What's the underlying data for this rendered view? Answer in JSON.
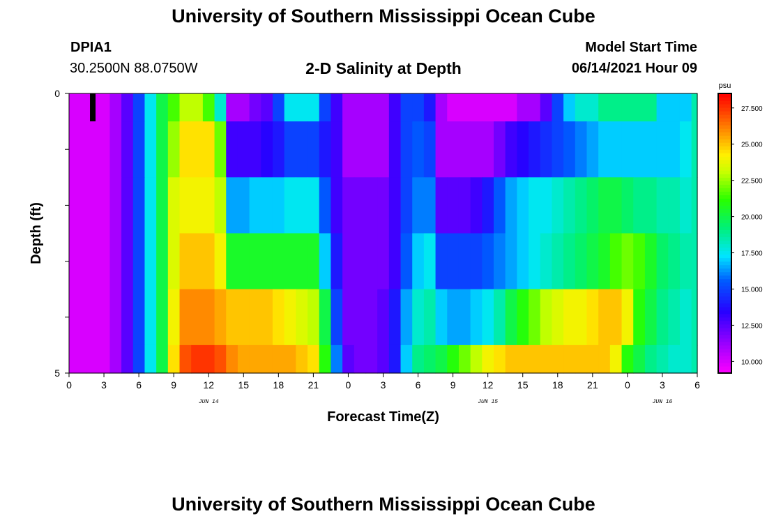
{
  "header": {
    "title": "University of Southern Mississippi Ocean Cube",
    "footer_title": "University of Southern Mississippi Ocean Cube",
    "station_id": "DPIA1",
    "station_coords": "30.2500N  88.0750W",
    "product_title": "2-D Salinity at Depth",
    "model_start_label": "Model Start Time",
    "model_start_value": "06/14/2021 Hour 09"
  },
  "chart_data": {
    "type": "heatmap",
    "title": "2-D Salinity at Depth",
    "xlabel": "Forecast Time(Z)",
    "ylabel": "Depth (ft)",
    "xlim": [
      0,
      54
    ],
    "ylim": [
      0,
      5
    ],
    "x_tick_labels": [
      "0",
      "3",
      "6",
      "9",
      "12",
      "15",
      "18",
      "21",
      "0",
      "3",
      "6",
      "9",
      "12",
      "15",
      "18",
      "21",
      "0",
      "3",
      "6"
    ],
    "y_tick_labels": [
      "0",
      "5"
    ],
    "day_labels": [
      {
        "text": "JUN 14",
        "hour": 12
      },
      {
        "text": "JUN 15",
        "hour": 36
      },
      {
        "text": "JUN 16",
        "hour": 51
      }
    ],
    "colorbar": {
      "unit": "psu",
      "min": 9.2,
      "max": 28.5,
      "tick_labels": [
        "10.000",
        "12.500",
        "15.000",
        "17.500",
        "20.000",
        "22.500",
        "25.000",
        "27.500"
      ],
      "tick_values": [
        10,
        12.5,
        15,
        17.5,
        20,
        22.5,
        25,
        27.5
      ]
    },
    "grid": false,
    "depth_bins": [
      0.5,
      1.5,
      2.5,
      3.5,
      4.5,
      5.0
    ],
    "time_hours": [
      0,
      1,
      2,
      3,
      4,
      5,
      6,
      7,
      8,
      9,
      10,
      11,
      12,
      13,
      14,
      15,
      16,
      17,
      18,
      19,
      20,
      21,
      22,
      23,
      24,
      25,
      26,
      27,
      28,
      29,
      30,
      31,
      32,
      33,
      34,
      35,
      36,
      37,
      38,
      39,
      40,
      41,
      42,
      43,
      44,
      45,
      46,
      47,
      48,
      49,
      50,
      51,
      52,
      53,
      54
    ],
    "salinity_psu": [
      [
        10,
        10,
        10,
        10,
        11,
        12.5,
        15,
        17.5,
        20,
        21.5,
        23,
        23,
        21.5,
        18,
        11,
        11,
        12,
        12.5,
        15,
        17.5,
        17.5,
        17.5,
        15,
        13,
        11,
        11,
        11,
        11,
        13,
        15,
        15,
        14,
        11,
        10,
        10,
        10,
        10,
        10,
        10,
        11,
        11,
        12.5,
        15,
        17,
        18,
        18,
        19,
        19,
        19,
        19,
        19,
        17,
        17,
        17,
        18.5
      ],
      [
        10,
        10,
        10,
        10,
        11,
        12.5,
        15,
        17.5,
        20,
        22.5,
        24.5,
        24.5,
        24.5,
        22,
        13,
        13,
        13,
        13.5,
        14,
        15,
        15,
        15,
        14,
        13,
        11,
        11,
        11,
        11,
        13,
        15,
        15.5,
        15,
        11,
        11,
        11,
        11,
        11,
        12,
        13,
        13.5,
        14,
        14.5,
        15,
        15.5,
        16,
        16.5,
        17,
        17,
        17,
        17,
        17,
        17,
        17,
        17.5,
        18.5
      ],
      [
        10,
        10,
        10,
        10,
        11,
        12.5,
        15,
        17.5,
        20,
        23.5,
        24,
        24,
        24,
        23,
        16.5,
        16.5,
        17,
        17,
        17,
        17.5,
        17.5,
        17.5,
        15.5,
        13,
        12,
        12,
        12,
        12,
        13,
        15,
        16,
        16,
        12.5,
        12.5,
        12.5,
        13,
        14,
        15.5,
        16.5,
        17,
        17.5,
        17.5,
        18,
        18.5,
        19,
        19.5,
        20,
        20,
        19.5,
        19,
        19,
        18.5,
        18.5,
        18,
        18.5
      ],
      [
        10,
        10,
        10,
        10,
        11,
        12.5,
        15,
        17.5,
        20,
        23.5,
        25,
        25,
        25,
        24,
        20.5,
        20.5,
        20.5,
        20.5,
        20.5,
        20.5,
        20.5,
        20.5,
        17,
        14,
        12,
        12,
        12,
        12,
        13,
        15.5,
        17,
        17.5,
        15,
        15,
        15,
        15,
        15.5,
        16,
        16.5,
        17,
        17.5,
        18,
        18.5,
        19,
        19.5,
        20,
        20.5,
        21.5,
        22,
        21.5,
        20.5,
        19.5,
        19,
        18.5,
        18.5
      ],
      [
        10,
        10,
        10,
        10,
        11,
        12.5,
        15,
        17.5,
        20,
        24,
        26,
        26,
        26,
        25.5,
        25,
        25,
        25,
        25,
        24.5,
        24,
        23.5,
        23,
        20,
        15,
        12,
        12,
        12,
        12.5,
        14,
        16.5,
        18,
        18.5,
        17,
        16.5,
        16.5,
        17,
        17.5,
        18.5,
        20,
        21,
        22,
        23,
        23.5,
        24,
        24,
        24.5,
        25,
        25,
        24,
        21,
        20,
        19,
        18.5,
        18,
        18.5
      ],
      [
        10,
        10,
        10,
        10,
        11,
        12.5,
        15,
        17.5,
        20,
        24.5,
        27,
        27.5,
        27.5,
        27,
        26,
        25.5,
        25.5,
        25.5,
        25.5,
        25.5,
        25,
        24.5,
        21,
        16,
        12.5,
        12,
        12,
        12.5,
        14,
        17,
        19,
        19.5,
        20,
        21,
        22,
        23,
        24,
        24.5,
        25,
        25,
        25,
        25,
        25,
        25,
        25,
        25,
        25,
        24,
        21,
        20,
        19,
        18.5,
        18,
        18,
        18.5
      ]
    ]
  }
}
